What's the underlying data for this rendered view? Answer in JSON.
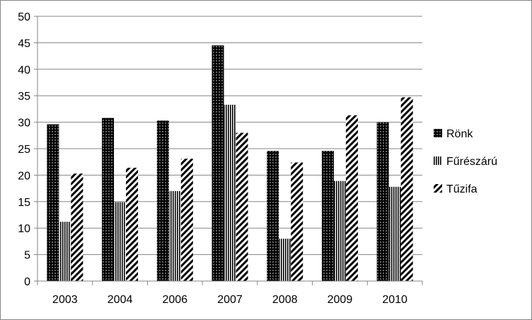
{
  "chart_data": {
    "type": "bar",
    "title": "",
    "xlabel": "",
    "ylabel": "",
    "categories": [
      "2003",
      "2004",
      "2006",
      "2007",
      "2008",
      "2009",
      "2010"
    ],
    "series": [
      {
        "name": "Rönk",
        "pattern": "dots",
        "values": [
          29.6,
          30.8,
          30.3,
          44.5,
          24.6,
          24.6,
          30.0
        ]
      },
      {
        "name": "Fűrészárú",
        "pattern": "vertical-lines",
        "values": [
          11.2,
          14.9,
          17.0,
          33.3,
          8.0,
          18.9,
          17.8
        ]
      },
      {
        "name": "Tűzifa",
        "pattern": "diagonal-lines",
        "values": [
          20.3,
          21.4,
          23.1,
          28.0,
          22.4,
          31.3,
          34.7
        ]
      }
    ],
    "ylim": [
      0,
      50
    ],
    "yticks": [
      0,
      5,
      10,
      15,
      20,
      25,
      30,
      35,
      40,
      45,
      50
    ],
    "grid": true,
    "legend_position": "right"
  }
}
